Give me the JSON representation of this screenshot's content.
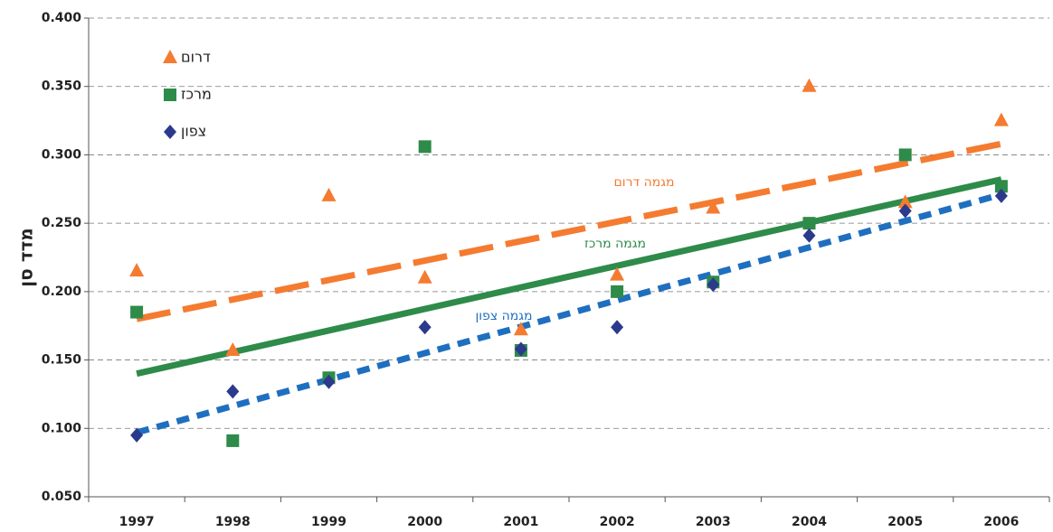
{
  "chart_data": {
    "type": "scatter",
    "ylabel": "מדד סן",
    "categories": [
      "1997",
      "1998",
      "1999",
      "2000",
      "2001",
      "2002",
      "2003",
      "2004",
      "2005",
      "2006"
    ],
    "ylim": [
      0.05,
      0.4
    ],
    "yticks": [
      {
        "value": 0.05,
        "label": "0.050"
      },
      {
        "value": 0.1,
        "label": "0.100"
      },
      {
        "value": 0.15,
        "label": "0.150"
      },
      {
        "value": 0.2,
        "label": "0.200"
      },
      {
        "value": 0.25,
        "label": "0.250"
      },
      {
        "value": 0.3,
        "label": "0.300"
      },
      {
        "value": 0.35,
        "label": "0.350"
      },
      {
        "value": 0.4,
        "label": "0.400"
      }
    ],
    "grid": true,
    "legend": "upper left",
    "series": [
      {
        "name": "דרום",
        "color": "#f47b30",
        "marker": "triangle",
        "values": [
          0.215,
          0.157,
          0.27,
          0.21,
          0.172,
          0.212,
          0.261,
          0.35,
          0.265,
          0.325
        ]
      },
      {
        "name": "מרכז",
        "color": "#2e8b4a",
        "marker": "square",
        "values": [
          0.185,
          0.091,
          0.137,
          0.306,
          0.157,
          0.2,
          0.207,
          0.25,
          0.3,
          0.277
        ]
      },
      {
        "name": "צפון",
        "color": "#2b3a8c",
        "marker": "diamond",
        "values": [
          0.095,
          0.127,
          0.134,
          0.174,
          0.158,
          0.174,
          0.205,
          0.241,
          0.259,
          0.27
        ]
      }
    ],
    "trends": [
      {
        "name": "מגמה דרום",
        "color": "#f47b30",
        "dash": "38 14",
        "values": [
          0.18,
          0.308
        ]
      },
      {
        "name": "מגמה מרכז",
        "color": "#2e8b4a",
        "dash": "none",
        "values": [
          0.14,
          0.282
        ]
      },
      {
        "name": "מגמה צפון",
        "color": "#1f6fc0",
        "dash": "14 9",
        "values": [
          0.097,
          0.271
        ]
      }
    ]
  }
}
